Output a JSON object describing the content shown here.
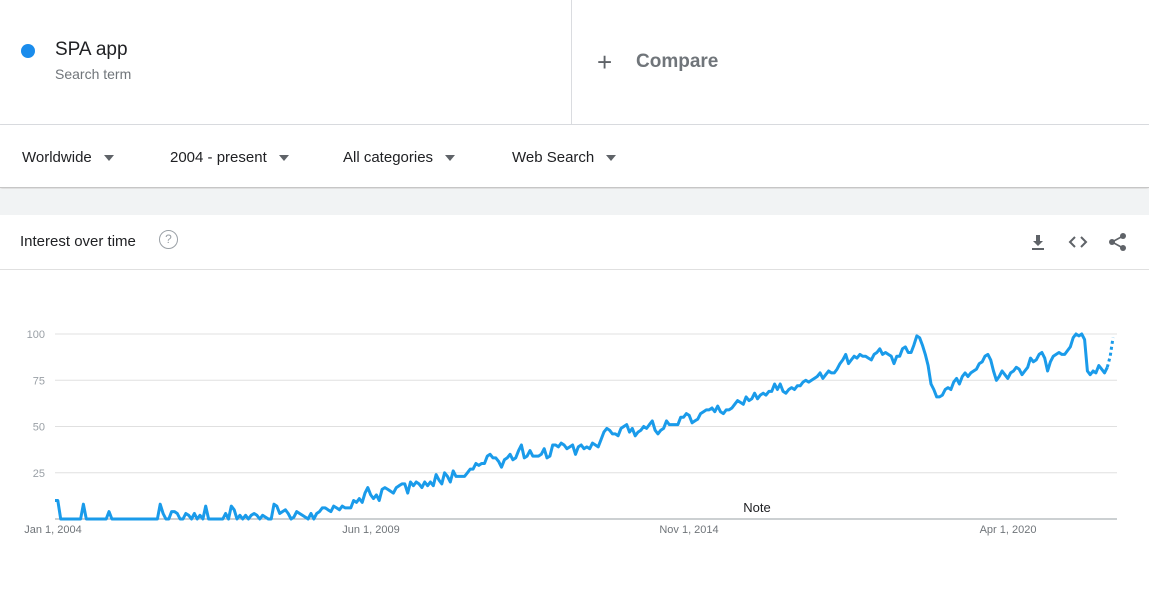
{
  "term": {
    "name": "SPA app",
    "type": "Search term",
    "color": "#1a8cec"
  },
  "compare": {
    "plus": "+",
    "label": "Compare"
  },
  "filters": {
    "region": "Worldwide",
    "time": "2004 - present",
    "category": "All categories",
    "property": "Web Search"
  },
  "card": {
    "title": "Interest over time",
    "help": "?"
  },
  "icons": {
    "download": "download-icon",
    "embed": "embed-code-icon",
    "share": "share-icon",
    "help": "help-icon"
  },
  "chart_data": {
    "type": "line",
    "title": "Interest over time",
    "ylim": [
      0,
      100
    ],
    "yticks": [
      "100",
      "75",
      "50",
      "25"
    ],
    "xticks": [
      "Jan 1, 2004",
      "Jun 1, 2009",
      "Nov 1, 2014",
      "Apr 1, 2020"
    ],
    "annotation": "Note",
    "grid": true,
    "color": "#1a9bea",
    "series": [
      {
        "values": [
          10,
          10,
          0,
          0,
          0,
          0,
          0,
          0,
          0,
          0,
          8,
          0,
          0,
          0,
          0,
          0,
          0,
          0,
          0,
          4,
          0,
          0,
          0,
          0,
          0,
          0,
          0,
          0,
          0,
          0,
          0,
          0,
          0,
          0,
          0,
          0,
          0,
          8,
          3,
          0,
          0,
          4,
          4,
          3,
          0,
          0,
          3,
          2,
          0,
          3,
          0,
          2,
          0,
          7,
          0,
          0,
          0,
          0,
          0,
          0,
          3,
          0,
          7,
          5,
          0,
          2,
          0,
          2,
          0,
          2,
          3,
          2,
          0,
          2,
          1,
          0,
          0,
          8,
          7,
          3,
          4,
          5,
          3,
          0,
          1,
          4,
          3,
          2,
          1,
          0,
          3,
          0,
          3,
          4,
          6,
          6,
          5,
          4,
          7,
          6,
          5,
          7,
          6,
          6,
          6,
          10,
          9,
          11,
          9,
          14,
          17,
          13,
          11,
          13,
          10,
          16,
          17,
          16,
          15,
          14,
          17,
          18,
          19,
          19,
          14,
          20,
          18,
          20,
          19,
          17,
          20,
          18,
          20,
          18,
          24,
          21,
          19,
          25,
          23,
          20,
          26,
          23,
          23,
          23,
          23,
          25,
          27,
          27,
          30,
          29,
          30,
          30,
          34,
          35,
          33,
          33,
          31,
          28,
          32,
          33,
          35,
          32,
          33,
          37,
          40,
          33,
          34,
          37,
          34,
          34,
          34,
          35,
          38,
          33,
          34,
          40,
          40,
          39,
          41,
          40,
          38,
          39,
          40,
          35,
          39,
          40,
          38,
          39,
          38,
          41,
          40,
          39,
          43,
          47,
          49,
          48,
          46,
          46,
          45,
          49,
          50,
          51,
          47,
          49,
          45,
          47,
          48,
          50,
          49,
          51,
          53,
          48,
          46,
          48,
          49,
          53,
          51,
          51,
          51,
          51,
          55,
          55,
          57,
          56,
          52,
          53,
          54,
          57,
          58,
          59,
          59,
          60,
          58,
          61,
          58,
          57,
          59,
          59,
          60,
          62,
          64,
          63,
          62,
          66,
          64,
          65,
          68,
          65,
          67,
          68,
          67,
          69,
          69,
          73,
          70,
          73,
          69,
          68,
          70,
          71,
          70,
          72,
          72,
          74,
          75,
          74,
          75,
          76,
          77,
          79,
          76,
          78,
          80,
          79,
          79,
          81,
          84,
          86,
          89,
          84,
          86,
          88,
          87,
          89,
          88,
          88,
          87,
          86,
          89,
          90,
          92,
          89,
          90,
          89,
          88,
          84,
          88,
          88,
          92,
          93,
          90,
          90,
          94,
          99,
          98,
          94,
          89,
          83,
          73,
          70,
          66,
          66,
          67,
          70,
          71,
          70,
          74,
          76,
          73,
          77,
          79,
          77,
          79,
          80,
          81,
          84,
          85,
          88,
          89,
          86,
          80,
          75,
          77,
          80,
          78,
          76,
          79,
          80,
          82,
          81,
          78,
          80,
          82,
          87,
          85,
          86,
          89,
          90,
          87,
          80,
          85,
          88,
          89,
          90,
          89,
          89,
          91,
          93,
          98,
          100,
          99,
          100,
          97,
          80,
          78,
          80,
          79,
          83,
          81,
          79,
          82,
          88,
          98
        ]
      }
    ]
  }
}
